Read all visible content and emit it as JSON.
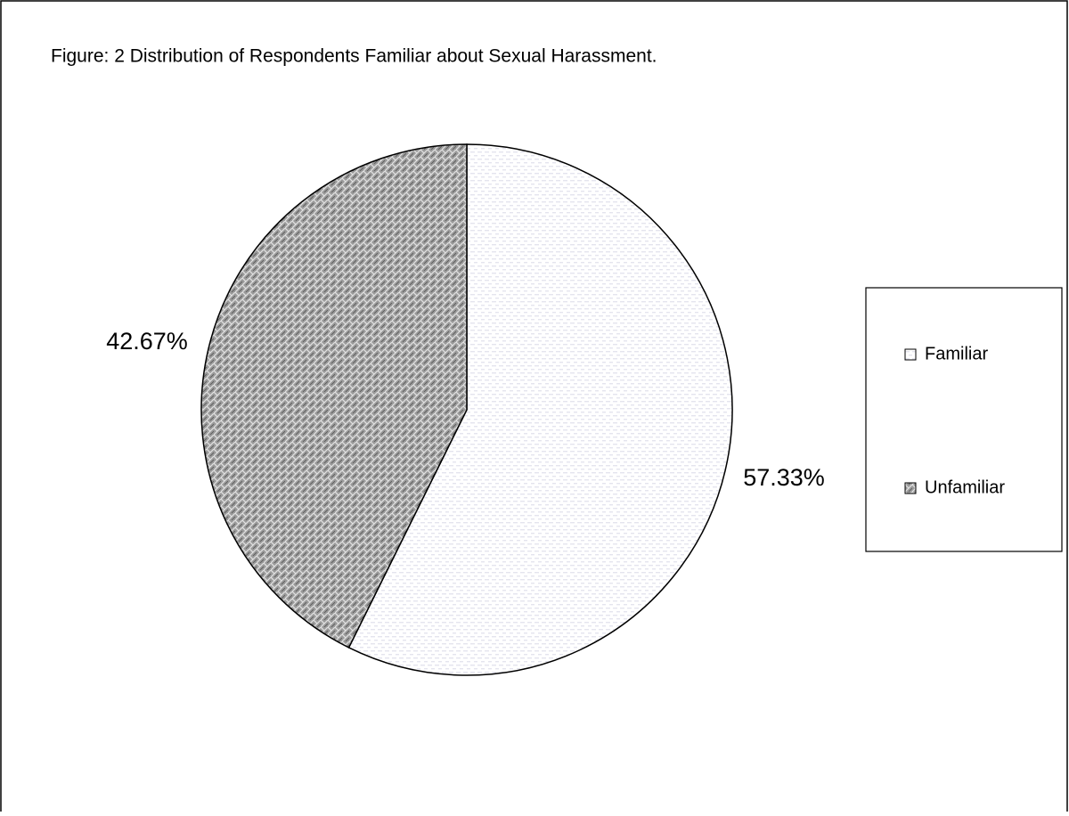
{
  "chart_data": {
    "type": "pie",
    "title": "Figure: 2 Distribution of Respondents Familiar about Sexual Harassment.",
    "categories": [
      "Familiar",
      "Unfamiliar"
    ],
    "values": [
      57.33,
      42.67
    ],
    "value_labels": [
      "57.33%",
      "42.67%"
    ],
    "colors": [
      "#e4e4ee",
      "#9a9a9a"
    ],
    "legend": "right"
  }
}
